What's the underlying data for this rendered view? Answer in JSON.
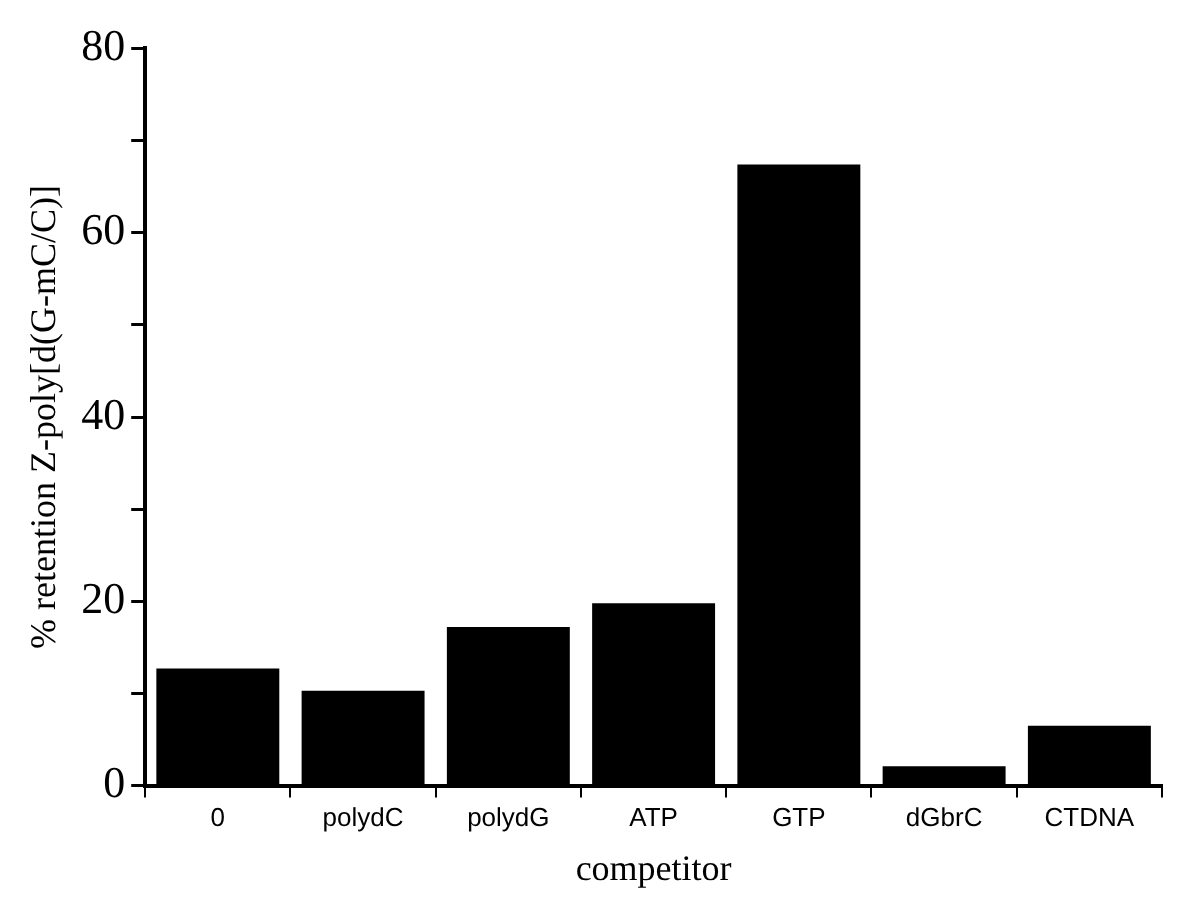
{
  "chart_data": {
    "type": "bar",
    "xlabel": "competitor",
    "ylabel": "% retention Z-poly[d(G-mC/C)]",
    "categories": [
      "0",
      "polydC",
      "polydG",
      "ATP",
      "GTP",
      "dGbrC",
      "CTDNA"
    ],
    "values": [
      12.7,
      10.3,
      17.2,
      19.8,
      67.4,
      2.1,
      6.5
    ],
    "color": "#000000",
    "ylim": [
      0,
      80
    ],
    "yticks": [
      0,
      {
        "value": 10,
        "label": null
      },
      20,
      {
        "value": 30,
        "label": null
      },
      40,
      {
        "value": 50,
        "label": null
      },
      60,
      {
        "value": 70,
        "label": null
      },
      80
    ],
    "grid": false,
    "legend": false
  }
}
